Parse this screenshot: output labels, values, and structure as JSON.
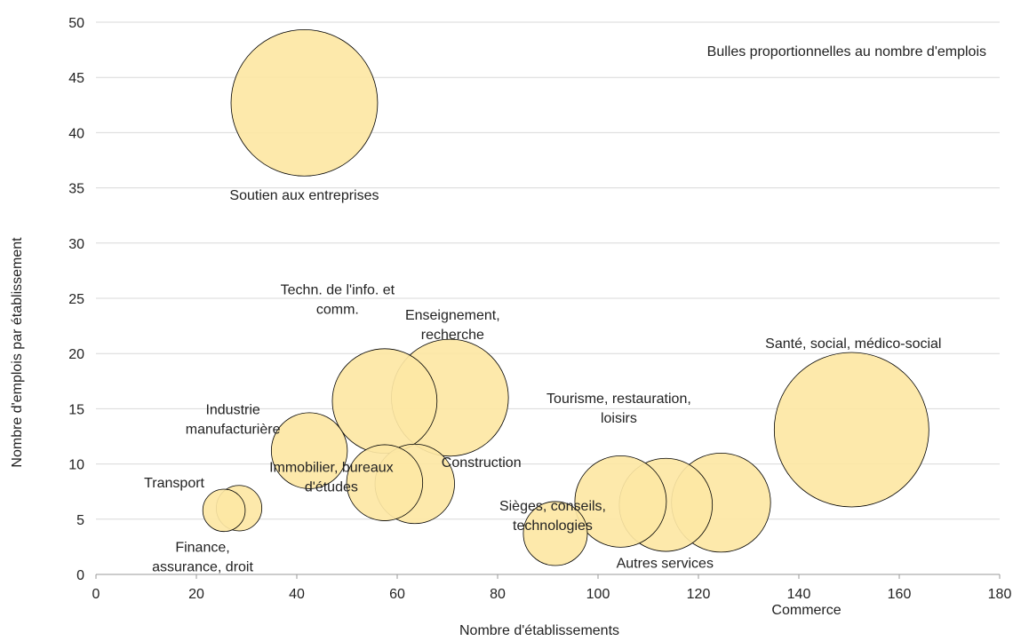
{
  "chart_data": {
    "type": "scatter",
    "title": "",
    "xlabel": "Nombre d'établissements",
    "ylabel": "Nombre d'emplois par établissement",
    "xlim": [
      0,
      180
    ],
    "ylim": [
      0,
      50
    ],
    "xticks": [
      0,
      20,
      40,
      60,
      80,
      100,
      120,
      140,
      160,
      180
    ],
    "yticks": [
      0,
      5,
      10,
      15,
      20,
      25,
      30,
      35,
      40,
      45,
      50
    ],
    "grid": "horizontal",
    "note": "Bulles proportionnelles au nombre d'emplois",
    "bubble_color": "#fde7a4",
    "series": [
      {
        "points": [
          {
            "label": "Soutien aux entreprises",
            "x": 41.5,
            "y": 42.7,
            "size": 1770
          },
          {
            "label": "Santé, social, médico-social",
            "x": 150.5,
            "y": 13.1,
            "size": 1970
          },
          {
            "label": "Enseignement, recherche",
            "x": 70.5,
            "y": 16.0,
            "size": 1128
          },
          {
            "label": "Techn. de l'info. et comm.",
            "x": 57.5,
            "y": 15.7,
            "size": 903
          },
          {
            "label": "Commerce",
            "x": 124.5,
            "y": 6.5,
            "size": 809
          },
          {
            "label": "Autres services",
            "x": 113.5,
            "y": 6.3,
            "size": 715
          },
          {
            "label": "Tourisme, restauration, loisirs",
            "x": 104.5,
            "y": 6.6,
            "size": 690
          },
          {
            "label": "Construction",
            "x": 63.5,
            "y": 8.2,
            "size": 521
          },
          {
            "label": "Immobilier, bureaux d'études",
            "x": 57.5,
            "y": 8.3,
            "size": 477
          },
          {
            "label": "Industrie manufacturière",
            "x": 42.5,
            "y": 11.2,
            "size": 476
          },
          {
            "label": "Sièges, conseils, technologies",
            "x": 91.5,
            "y": 3.7,
            "size": 338
          },
          {
            "label": "Finance, assurance, droit",
            "x": 28.5,
            "y": 6.0,
            "size": 171
          },
          {
            "label": "Transport",
            "x": 25.5,
            "y": 5.8,
            "size": 148
          }
        ]
      }
    ]
  },
  "labels": [
    {
      "lines": [
        "Soutien aux entreprises"
      ],
      "anchor": "middle"
    },
    {
      "lines": [
        "Santé, social, médico-social"
      ],
      "anchor": "middle"
    },
    {
      "lines": [
        "Enseignement,",
        "recherche"
      ],
      "anchor": "middle"
    },
    {
      "lines": [
        "Techn. de l'info. et",
        "comm."
      ],
      "anchor": "middle"
    },
    {
      "lines": [
        "Commerce"
      ],
      "anchor": "start"
    },
    {
      "lines": [
        "Autres services"
      ],
      "anchor": "middle"
    },
    {
      "lines": [
        "Tourisme, restauration,",
        "loisirs"
      ],
      "anchor": "middle"
    },
    {
      "lines": [
        "Construction"
      ],
      "anchor": "start"
    },
    {
      "lines": [
        "Immobilier, bureaux",
        "d'études"
      ],
      "anchor": "middle"
    },
    {
      "lines": [
        "Industrie",
        "manufacturière"
      ],
      "anchor": "middle"
    },
    {
      "lines": [
        "Sièges, conseils,",
        "technologies"
      ],
      "anchor": "middle"
    },
    {
      "lines": [
        "Finance,",
        "assurance, droit"
      ],
      "anchor": "middle"
    },
    {
      "lines": [
        "Transport"
      ],
      "anchor": "middle"
    }
  ]
}
